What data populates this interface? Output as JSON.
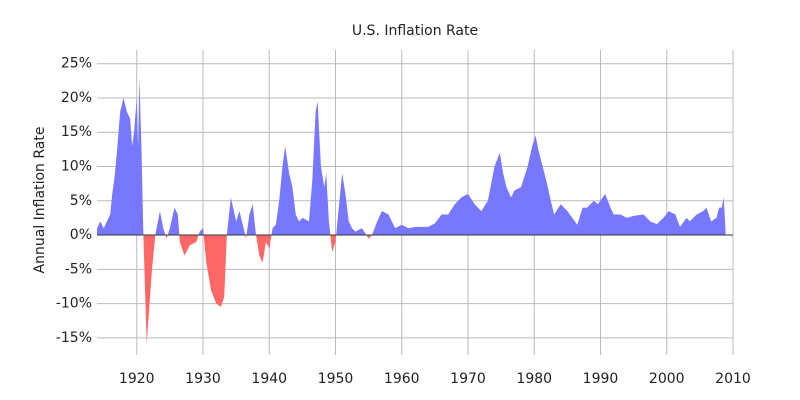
{
  "chart_data": {
    "type": "area",
    "title": "U.S. Inflation Rate",
    "ylabel": "Annual Inflation Rate",
    "x": [
      1914.0,
      1914.5,
      1915.0,
      1915.5,
      1916.0,
      1916.3,
      1916.6,
      1917.0,
      1917.5,
      1918.0,
      1918.5,
      1919.0,
      1919.3,
      1919.6,
      1920.0,
      1920.2,
      1920.4,
      1920.7,
      1921.0,
      1921.5,
      1922.3,
      1922.8,
      1923.5,
      1924.0,
      1924.5,
      1925.0,
      1925.7,
      1926.2,
      1926.5,
      1927.2,
      1928.0,
      1929.0,
      1929.5,
      1930.0,
      1930.5,
      1931.2,
      1932.0,
      1932.7,
      1933.2,
      1933.6,
      1934.2,
      1935.0,
      1935.5,
      1936.0,
      1936.5,
      1937.0,
      1937.5,
      1938.0,
      1938.5,
      1939.0,
      1939.5,
      1940.0,
      1940.5,
      1941.0,
      1941.5,
      1942.0,
      1942.4,
      1943.0,
      1943.5,
      1944.0,
      1944.5,
      1945.0,
      1946.0,
      1946.5,
      1947.0,
      1947.3,
      1947.8,
      1948.3,
      1948.6,
      1949.0,
      1949.5,
      1950.0,
      1950.5,
      1951.0,
      1951.5,
      1952.0,
      1952.5,
      1953.0,
      1954.0,
      1955.0,
      1955.5,
      1956.3,
      1957.0,
      1958.0,
      1959.0,
      1960.0,
      1961.0,
      1962.0,
      1963.0,
      1964.0,
      1965.0,
      1966.0,
      1967.0,
      1968.0,
      1969.0,
      1970.0,
      1971.0,
      1972.0,
      1973.0,
      1974.0,
      1974.8,
      1975.3,
      1975.8,
      1976.5,
      1977.0,
      1978.0,
      1979.0,
      1979.7,
      1980.2,
      1980.6,
      1981.0,
      1981.8,
      1982.5,
      1983.0,
      1984.0,
      1985.0,
      1986.5,
      1987.3,
      1988.0,
      1989.0,
      1989.6,
      1990.7,
      1991.5,
      1992.0,
      1993.0,
      1994.0,
      1995.0,
      1996.5,
      1997.5,
      1998.5,
      1999.5,
      2000.3,
      2001.3,
      2002.0,
      2003.0,
      2003.5,
      2004.5,
      2005.5,
      2006.0,
      2006.7,
      2007.5,
      2007.9,
      2008.3,
      2008.6,
      2008.9
    ],
    "values": [
      1.0,
      2,
      1,
      2,
      3,
      6,
      8,
      12,
      18,
      20,
      18,
      17,
      13,
      15,
      20,
      13,
      23,
      13,
      0,
      -15.8,
      -5,
      0,
      3.5,
      1,
      -0.5,
      1,
      4,
      3,
      -1,
      -3,
      -1.5,
      -1,
      0.5,
      1,
      -4,
      -8,
      -10,
      -10.5,
      -9,
      0,
      5.5,
      2,
      3.5,
      1.5,
      -0.5,
      3,
      4.5,
      0,
      -3,
      -4,
      -1,
      -2,
      1,
      1.5,
      5,
      10,
      13,
      9,
      7,
      3,
      2,
      2.5,
      2,
      8,
      18,
      19.5,
      10,
      7,
      9,
      2,
      -2.5,
      -1,
      4,
      9,
      6,
      2,
      1,
      0.5,
      1,
      -0.5,
      0,
      2,
      3.5,
      3,
      1,
      1.5,
      1,
      1.2,
      1.2,
      1.2,
      1.7,
      3,
      3,
      4.5,
      5.5,
      6,
      4.5,
      3.5,
      5,
      10,
      12,
      9,
      7,
      5.5,
      6.5,
      7,
      10,
      13,
      14.5,
      12.5,
      11,
      8,
      5,
      3,
      4.5,
      3.5,
      1.5,
      4,
      4,
      5,
      4.5,
      6,
      4,
      3,
      3,
      2.5,
      2.8,
      3,
      2,
      1.6,
      2.5,
      3.5,
      3,
      1.2,
      2.5,
      2,
      3,
      3.5,
      4,
      2,
      2.5,
      4,
      4,
      5.5,
      0
    ],
    "color": "#7777ff",
    "negative_color": "#ff6666",
    "xlim": [
      1914,
      2010
    ],
    "xticks": [
      1920,
      1930,
      1940,
      1950,
      1960,
      1970,
      1980,
      1990,
      2000,
      2010
    ],
    "ylim": [
      -17.5,
      27
    ],
    "yticks": [
      {
        "value": -15,
        "label": "-15%"
      },
      {
        "value": -10,
        "label": "-10%"
      },
      {
        "value": -5,
        "label": "-5%"
      },
      {
        "value": 0,
        "label": "0%"
      },
      {
        "value": 5,
        "label": "5%"
      },
      {
        "value": 10,
        "label": "10%"
      },
      {
        "value": 15,
        "label": "15%"
      },
      {
        "value": 20,
        "label": "20%"
      },
      {
        "value": 25,
        "label": "25%"
      }
    ],
    "grid": true
  }
}
